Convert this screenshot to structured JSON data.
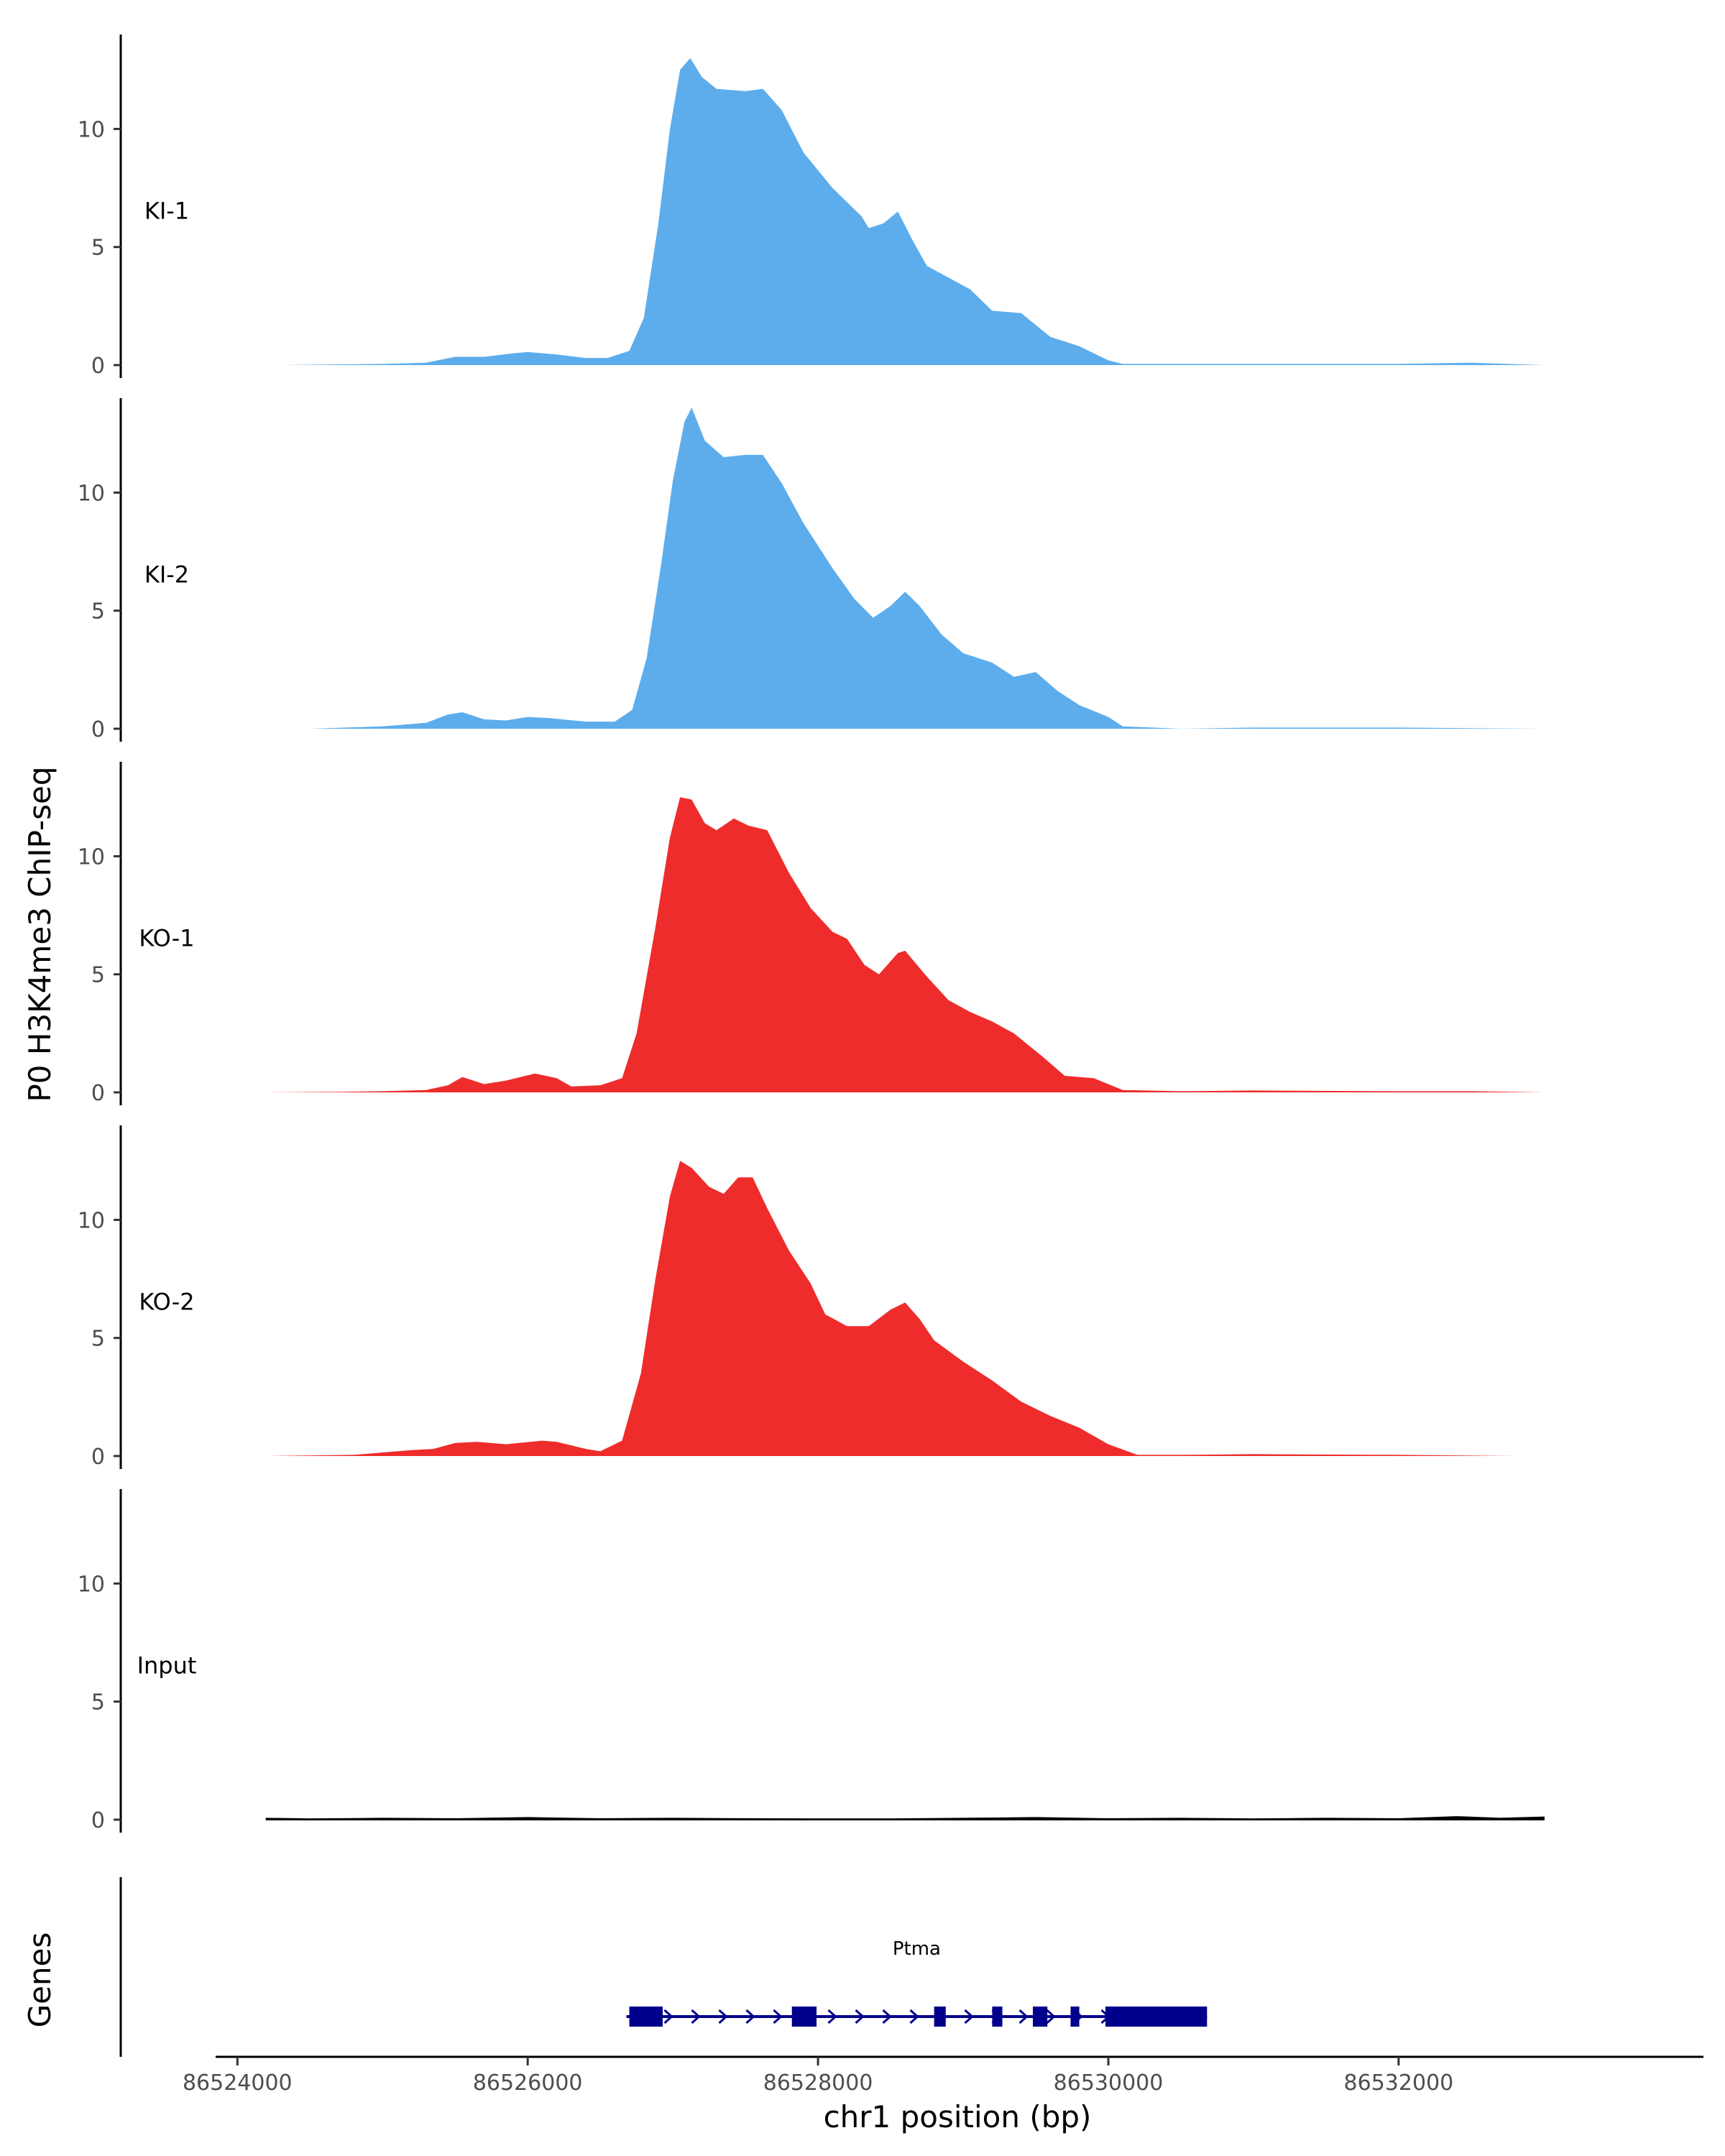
{
  "chart_data": {
    "type": "area",
    "title": "",
    "xlabel": "chr1 position (bp)",
    "ylabel": "P0 H3K4me3 ChIP-seq",
    "gene_panel_label": "Genes",
    "xlim": [
      86523850,
      86534100
    ],
    "ylim": [
      0,
      14
    ],
    "x_ticks": [
      86524000,
      86526000,
      86528000,
      86530000,
      86532000
    ],
    "y_ticks": [
      0,
      5,
      10
    ],
    "colors": {
      "KI": "#5DADEC",
      "KO": "#EE2C2C",
      "Input": "#000000",
      "gene": "#00008B"
    },
    "series": [
      {
        "name": "KI-1",
        "color": "#5DADEC",
        "points": [
          [
            86524300,
            0
          ],
          [
            86525000,
            0.05
          ],
          [
            86525300,
            0.1
          ],
          [
            86525500,
            0.35
          ],
          [
            86525700,
            0.35
          ],
          [
            86525900,
            0.5
          ],
          [
            86526000,
            0.55
          ],
          [
            86526200,
            0.45
          ],
          [
            86526400,
            0.3
          ],
          [
            86526550,
            0.3
          ],
          [
            86526700,
            0.6
          ],
          [
            86526800,
            2
          ],
          [
            86526900,
            6
          ],
          [
            86526980,
            10
          ],
          [
            86527050,
            12.5
          ],
          [
            86527120,
            13
          ],
          [
            86527200,
            12.2
          ],
          [
            86527300,
            11.7
          ],
          [
            86527500,
            11.6
          ],
          [
            86527620,
            11.7
          ],
          [
            86527750,
            10.8
          ],
          [
            86527900,
            9
          ],
          [
            86528100,
            7.5
          ],
          [
            86528300,
            6.3
          ],
          [
            86528350,
            5.8
          ],
          [
            86528450,
            6
          ],
          [
            86528550,
            6.5
          ],
          [
            86528650,
            5.3
          ],
          [
            86528750,
            4.2
          ],
          [
            86528900,
            3.7
          ],
          [
            86529050,
            3.2
          ],
          [
            86529200,
            2.3
          ],
          [
            86529400,
            2.2
          ],
          [
            86529600,
            1.2
          ],
          [
            86529800,
            0.8
          ],
          [
            86530000,
            0.2
          ],
          [
            86530100,
            0.05
          ],
          [
            86530500,
            0.05
          ],
          [
            86531000,
            0.05
          ],
          [
            86532000,
            0.05
          ],
          [
            86532500,
            0.1
          ],
          [
            86533000,
            0
          ]
        ]
      },
      {
        "name": "KI-2",
        "color": "#5DADEC",
        "points": [
          [
            86524500,
            0
          ],
          [
            86525000,
            0.1
          ],
          [
            86525300,
            0.25
          ],
          [
            86525450,
            0.6
          ],
          [
            86525550,
            0.7
          ],
          [
            86525700,
            0.4
          ],
          [
            86525850,
            0.35
          ],
          [
            86526000,
            0.5
          ],
          [
            86526150,
            0.45
          ],
          [
            86526400,
            0.3
          ],
          [
            86526600,
            0.3
          ],
          [
            86526720,
            0.8
          ],
          [
            86526820,
            3
          ],
          [
            86526920,
            7
          ],
          [
            86527000,
            10.5
          ],
          [
            86527080,
            13
          ],
          [
            86527130,
            13.6
          ],
          [
            86527220,
            12.2
          ],
          [
            86527350,
            11.5
          ],
          [
            86527500,
            11.6
          ],
          [
            86527620,
            11.6
          ],
          [
            86527750,
            10.4
          ],
          [
            86527900,
            8.7
          ],
          [
            86528100,
            6.8
          ],
          [
            86528250,
            5.5
          ],
          [
            86528380,
            4.7
          ],
          [
            86528500,
            5.2
          ],
          [
            86528600,
            5.8
          ],
          [
            86528700,
            5.2
          ],
          [
            86528850,
            4
          ],
          [
            86529000,
            3.2
          ],
          [
            86529200,
            2.8
          ],
          [
            86529350,
            2.2
          ],
          [
            86529500,
            2.4
          ],
          [
            86529650,
            1.6
          ],
          [
            86529800,
            1
          ],
          [
            86530000,
            0.5
          ],
          [
            86530100,
            0.1
          ],
          [
            86530500,
            0
          ],
          [
            86531000,
            0.05
          ],
          [
            86532000,
            0.05
          ],
          [
            86533000,
            0
          ]
        ]
      },
      {
        "name": "KO-1",
        "color": "#EE2C2C",
        "points": [
          [
            86524200,
            0
          ],
          [
            86524700,
            0.02
          ],
          [
            86525000,
            0.05
          ],
          [
            86525300,
            0.1
          ],
          [
            86525450,
            0.3
          ],
          [
            86525550,
            0.65
          ],
          [
            86525700,
            0.35
          ],
          [
            86525850,
            0.5
          ],
          [
            86526050,
            0.8
          ],
          [
            86526200,
            0.6
          ],
          [
            86526300,
            0.25
          ],
          [
            86526500,
            0.3
          ],
          [
            86526650,
            0.6
          ],
          [
            86526750,
            2.5
          ],
          [
            86526880,
            7
          ],
          [
            86526980,
            10.8
          ],
          [
            86527050,
            12.5
          ],
          [
            86527130,
            12.4
          ],
          [
            86527220,
            11.4
          ],
          [
            86527300,
            11.1
          ],
          [
            86527420,
            11.6
          ],
          [
            86527520,
            11.3
          ],
          [
            86527650,
            11.1
          ],
          [
            86527800,
            9.3
          ],
          [
            86527950,
            7.8
          ],
          [
            86528100,
            6.8
          ],
          [
            86528200,
            6.5
          ],
          [
            86528320,
            5.4
          ],
          [
            86528420,
            5
          ],
          [
            86528550,
            5.9
          ],
          [
            86528600,
            6
          ],
          [
            86528750,
            4.9
          ],
          [
            86528900,
            3.9
          ],
          [
            86529050,
            3.4
          ],
          [
            86529200,
            3
          ],
          [
            86529350,
            2.5
          ],
          [
            86529550,
            1.5
          ],
          [
            86529700,
            0.7
          ],
          [
            86529900,
            0.6
          ],
          [
            86530100,
            0.1
          ],
          [
            86530500,
            0.05
          ],
          [
            86531000,
            0.08
          ],
          [
            86532000,
            0.05
          ],
          [
            86532500,
            0.05
          ],
          [
            86533000,
            0
          ]
        ]
      },
      {
        "name": "KO-2",
        "color": "#EE2C2C",
        "points": [
          [
            86524200,
            0
          ],
          [
            86524800,
            0.05
          ],
          [
            86525000,
            0.15
          ],
          [
            86525200,
            0.25
          ],
          [
            86525350,
            0.3
          ],
          [
            86525500,
            0.55
          ],
          [
            86525650,
            0.6
          ],
          [
            86525850,
            0.5
          ],
          [
            86526100,
            0.65
          ],
          [
            86526200,
            0.6
          ],
          [
            86526400,
            0.3
          ],
          [
            86526500,
            0.2
          ],
          [
            86526650,
            0.65
          ],
          [
            86526780,
            3.5
          ],
          [
            86526880,
            7.5
          ],
          [
            86526980,
            11
          ],
          [
            86527050,
            12.5
          ],
          [
            86527130,
            12.2
          ],
          [
            86527250,
            11.4
          ],
          [
            86527350,
            11.1
          ],
          [
            86527450,
            11.8
          ],
          [
            86527550,
            11.8
          ],
          [
            86527650,
            10.5
          ],
          [
            86527800,
            8.7
          ],
          [
            86527950,
            7.3
          ],
          [
            86528050,
            6
          ],
          [
            86528200,
            5.5
          ],
          [
            86528350,
            5.5
          ],
          [
            86528500,
            6.2
          ],
          [
            86528600,
            6.5
          ],
          [
            86528700,
            5.8
          ],
          [
            86528800,
            4.9
          ],
          [
            86529000,
            4
          ],
          [
            86529200,
            3.2
          ],
          [
            86529400,
            2.3
          ],
          [
            86529600,
            1.7
          ],
          [
            86529800,
            1.2
          ],
          [
            86530000,
            0.5
          ],
          [
            86530200,
            0.05
          ],
          [
            86530500,
            0.05
          ],
          [
            86531000,
            0.08
          ],
          [
            86532000,
            0.05
          ],
          [
            86532800,
            0
          ]
        ]
      },
      {
        "name": "Input",
        "color": "#000000",
        "points": [
          [
            86524200,
            0.05
          ],
          [
            86524500,
            0.02
          ],
          [
            86525000,
            0.05
          ],
          [
            86525500,
            0.03
          ],
          [
            86526000,
            0.08
          ],
          [
            86526500,
            0.03
          ],
          [
            86527000,
            0.05
          ],
          [
            86527500,
            0.03
          ],
          [
            86528000,
            0.02
          ],
          [
            86528500,
            0.02
          ],
          [
            86529000,
            0.05
          ],
          [
            86529500,
            0.08
          ],
          [
            86530000,
            0.03
          ],
          [
            86530500,
            0.05
          ],
          [
            86531000,
            0.02
          ],
          [
            86531500,
            0.05
          ],
          [
            86532000,
            0.03
          ],
          [
            86532400,
            0.12
          ],
          [
            86532700,
            0.05
          ],
          [
            86533000,
            0.1
          ]
        ]
      }
    ],
    "gene": {
      "name": "Ptma",
      "strand": "+",
      "start": 86526680,
      "end": 86530680,
      "exons": [
        [
          86526700,
          86526930
        ],
        [
          86527820,
          86527990
        ],
        [
          86528800,
          86528880
        ],
        [
          86529200,
          86529270
        ],
        [
          86529480,
          86529580
        ],
        [
          86529740,
          86529800
        ],
        [
          86529980,
          86530680
        ]
      ]
    }
  }
}
